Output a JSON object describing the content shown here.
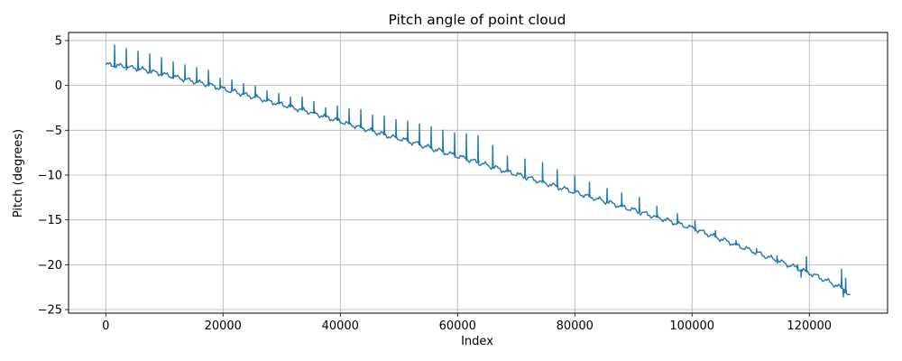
{
  "chart_data": {
    "type": "line",
    "title": "Pitch angle of point cloud",
    "xlabel": "Index",
    "ylabel": "Pitch (degrees)",
    "xlim": [
      -6350,
      133350
    ],
    "ylim": [
      -25.4,
      5.9
    ],
    "xticks": [
      0,
      20000,
      40000,
      60000,
      80000,
      100000,
      120000
    ],
    "yticks": [
      5,
      0,
      -5,
      -10,
      -15,
      -20,
      -25
    ],
    "xtick_labels": [
      "0",
      "20000",
      "40000",
      "60000",
      "80000",
      "100000",
      "120000"
    ],
    "ytick_labels": [
      "5",
      "0",
      "−5",
      "−10",
      "−15",
      "−20",
      "−25"
    ],
    "grid": true,
    "legend": "none",
    "line_color": "#1f77b4",
    "series": [
      {
        "x": [
          0,
          2000,
          4000,
          6000,
          8000,
          10000,
          12000,
          14000,
          16000,
          18000,
          20000,
          22000,
          24000,
          26000,
          28000,
          30000,
          32000,
          34000,
          36000,
          38000,
          40000,
          42000,
          44000,
          46000,
          48000,
          50000,
          52000,
          54000,
          56000,
          58000,
          60000,
          62000,
          64000,
          66000,
          68000,
          70000,
          72000,
          74000,
          76000,
          78000,
          80000,
          82000,
          84000,
          86000,
          88000,
          90000,
          92000,
          94000,
          96000,
          98000,
          100000,
          102000,
          104000,
          106000,
          108000,
          110000,
          112000,
          114000,
          116000,
          118000,
          120000,
          122000,
          124000,
          126000,
          127000
        ],
        "y": [
          2.3,
          2.2,
          2.0,
          1.8,
          1.5,
          1.2,
          0.9,
          0.6,
          0.3,
          0.0,
          -0.4,
          -0.7,
          -1.1,
          -1.4,
          -1.8,
          -2.1,
          -2.5,
          -2.8,
          -3.2,
          -3.6,
          -4.0,
          -4.4,
          -4.8,
          -5.2,
          -5.6,
          -5.9,
          -6.3,
          -6.7,
          -7.1,
          -7.5,
          -7.9,
          -8.3,
          -8.7,
          -9.1,
          -9.5,
          -9.9,
          -10.3,
          -10.7,
          -11.1,
          -11.5,
          -11.9,
          -12.3,
          -12.7,
          -13.1,
          -13.5,
          -13.9,
          -14.3,
          -14.7,
          -15.1,
          -15.5,
          -15.9,
          -16.4,
          -16.9,
          -17.4,
          -17.9,
          -18.4,
          -18.9,
          -19.4,
          -19.9,
          -20.4,
          -20.9,
          -21.5,
          -22.1,
          -22.8,
          -23.6
        ]
      }
    ],
    "spikes": [
      {
        "x": 1500,
        "y": 4.5
      },
      {
        "x": 3500,
        "y": 4.1
      },
      {
        "x": 5500,
        "y": 3.8
      },
      {
        "x": 7500,
        "y": 3.5
      },
      {
        "x": 9500,
        "y": 3.1
      },
      {
        "x": 11500,
        "y": 2.6
      },
      {
        "x": 13500,
        "y": 2.3
      },
      {
        "x": 15500,
        "y": 2.0
      },
      {
        "x": 17500,
        "y": 1.7
      },
      {
        "x": 19500,
        "y": 0.8
      },
      {
        "x": 21500,
        "y": 0.6
      },
      {
        "x": 23500,
        "y": 0.2
      },
      {
        "x": 25500,
        "y": -0.1
      },
      {
        "x": 27500,
        "y": -0.6
      },
      {
        "x": 29500,
        "y": -0.9
      },
      {
        "x": 31500,
        "y": -1.3
      },
      {
        "x": 33500,
        "y": -1.3
      },
      {
        "x": 35500,
        "y": -1.8
      },
      {
        "x": 37500,
        "y": -2.5
      },
      {
        "x": 39500,
        "y": -2.3
      },
      {
        "x": 41500,
        "y": -2.6
      },
      {
        "x": 43500,
        "y": -2.7
      },
      {
        "x": 45500,
        "y": -3.3
      },
      {
        "x": 47500,
        "y": -3.4
      },
      {
        "x": 49500,
        "y": -3.8
      },
      {
        "x": 51500,
        "y": -4.0
      },
      {
        "x": 53500,
        "y": -4.3
      },
      {
        "x": 55500,
        "y": -4.6
      },
      {
        "x": 57500,
        "y": -5.0
      },
      {
        "x": 59500,
        "y": -5.3
      },
      {
        "x": 61500,
        "y": -5.4
      },
      {
        "x": 63500,
        "y": -5.6
      },
      {
        "x": 66000,
        "y": -6.7
      },
      {
        "x": 68500,
        "y": -7.9
      },
      {
        "x": 71500,
        "y": -8.2
      },
      {
        "x": 74500,
        "y": -8.6
      },
      {
        "x": 77000,
        "y": -9.4
      },
      {
        "x": 80000,
        "y": -10.1
      },
      {
        "x": 82500,
        "y": -10.8
      },
      {
        "x": 85500,
        "y": -11.5
      },
      {
        "x": 88000,
        "y": -12.0
      },
      {
        "x": 91000,
        "y": -12.5
      },
      {
        "x": 94000,
        "y": -13.5
      },
      {
        "x": 97500,
        "y": -14.3
      },
      {
        "x": 100500,
        "y": -15.1
      },
      {
        "x": 104000,
        "y": -16.2
      },
      {
        "x": 107500,
        "y": -17.3
      },
      {
        "x": 111000,
        "y": -18.2
      },
      {
        "x": 114500,
        "y": -19.0
      },
      {
        "x": 118000,
        "y": -20.0
      },
      {
        "x": 119500,
        "y": -19.1
      },
      {
        "x": 125500,
        "y": -20.5
      },
      {
        "x": 126200,
        "y": -21.5
      }
    ],
    "dips": [
      {
        "x": 118600,
        "y": -21.4
      },
      {
        "x": 125800,
        "y": -23.6
      }
    ]
  }
}
